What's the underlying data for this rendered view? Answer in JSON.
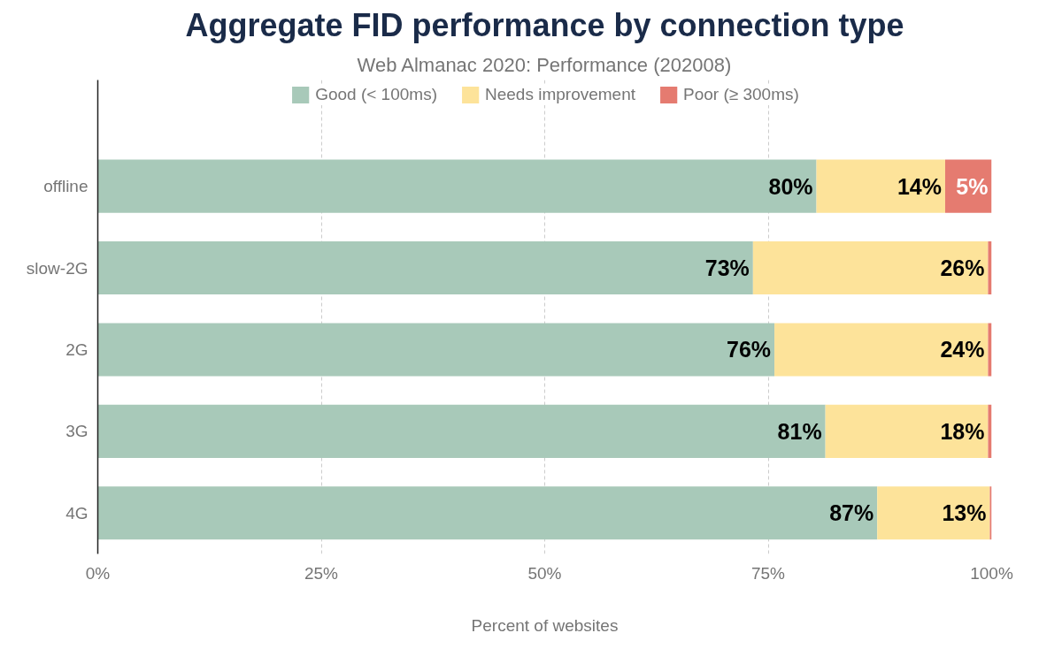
{
  "chart_data": {
    "type": "bar",
    "orientation": "horizontal",
    "stacked": true,
    "title": "Aggregate FID performance by connection type",
    "subtitle": "Web Almanac 2020: Performance (202008)",
    "xlabel": "Percent of websites",
    "categories": [
      "offline",
      "slow-2G",
      "2G",
      "3G",
      "4G"
    ],
    "series": [
      {
        "name": "Good (< 100ms)",
        "color": "#a8c9b9",
        "values": [
          80.4,
          73.3,
          75.7,
          81.4,
          87.2
        ],
        "value_labels": [
          "80%",
          "73%",
          "76%",
          "81%",
          "87%"
        ]
      },
      {
        "name": "Needs improvement",
        "color": "#fde39a",
        "values": [
          14.4,
          26.3,
          23.9,
          18.2,
          12.6
        ],
        "value_labels": [
          "14%",
          "26%",
          "24%",
          "18%",
          "13%"
        ]
      },
      {
        "name": "Poor (≥ 300ms)",
        "color": "#e57b70",
        "values": [
          5.2,
          0.4,
          0.4,
          0.4,
          0.2
        ],
        "value_labels": [
          "5%",
          null,
          null,
          null,
          null
        ]
      }
    ],
    "xlim": [
      0,
      100
    ],
    "xticks": [
      {
        "value": 0,
        "label": "0%"
      },
      {
        "value": 25,
        "label": "25%"
      },
      {
        "value": 50,
        "label": "50%"
      },
      {
        "value": 75,
        "label": "75%"
      },
      {
        "value": 100,
        "label": "100%"
      }
    ],
    "grid": "x",
    "legend": "top"
  }
}
